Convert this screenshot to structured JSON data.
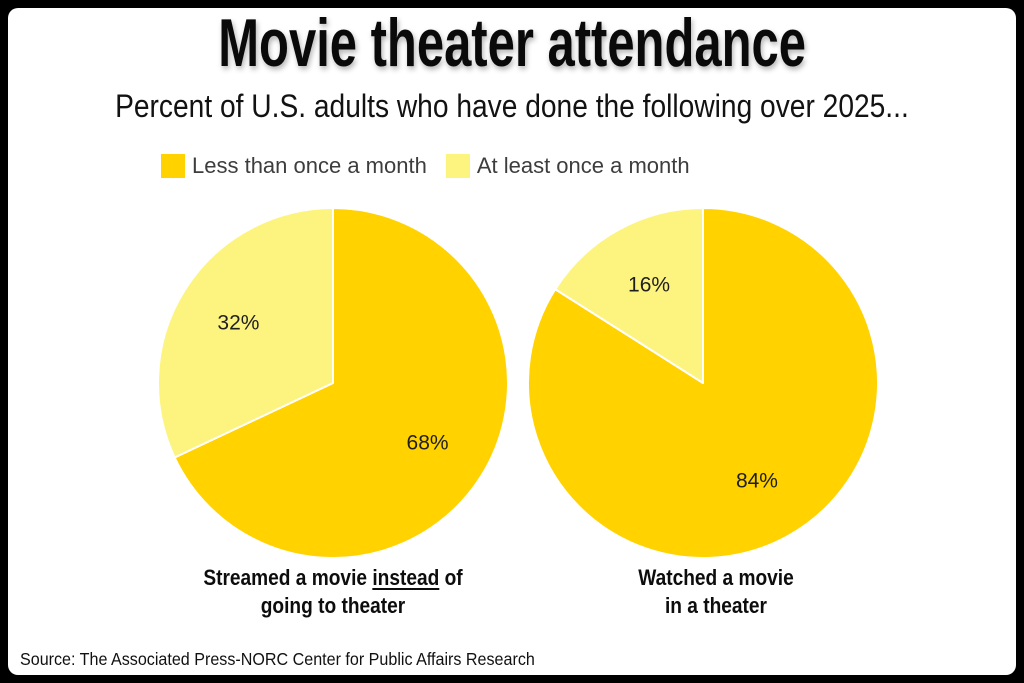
{
  "frame": {
    "border_color": "#000000",
    "background_color": "#ffffff"
  },
  "header": {
    "title": "Movie theater attendance",
    "subtitle": "Percent of U.S. adults who have done the following over 2025..."
  },
  "legend": {
    "items": [
      {
        "label": "Less than once a month",
        "color": "#ffd200"
      },
      {
        "label": "At least once a month",
        "color": "#fdf47f"
      }
    ]
  },
  "chart_data": {
    "type": "pie",
    "title": "Movie theater attendance",
    "subtitle": "Percent of U.S. adults who have done the following over 2025...",
    "unit": "%",
    "legend_position": "top",
    "legend_entries": [
      "Less than once a month",
      "At least once a month"
    ],
    "series_colors": {
      "Less than once a month": "#ffd200",
      "At least once a month": "#fdf47f"
    },
    "slice_stroke": "#ffffff",
    "value_label_color": "#1f1f1f",
    "start_angle_deg": 0,
    "direction": "clockwise",
    "charts": [
      {
        "caption_lines": [
          "Streamed a movie instead of",
          "going to theater"
        ],
        "underline_word": "instead",
        "slices": [
          {
            "name": "Less than once a month",
            "value": 68
          },
          {
            "name": "At least once a month",
            "value": 32
          }
        ]
      },
      {
        "caption_lines": [
          "Watched a movie",
          "in a theater"
        ],
        "underline_word": "",
        "slices": [
          {
            "name": "Less than once a month",
            "value": 84
          },
          {
            "name": "At least once a month",
            "value": 16
          }
        ]
      }
    ]
  },
  "source": "Source: The Associated Press-NORC Center for Public Affairs Research"
}
